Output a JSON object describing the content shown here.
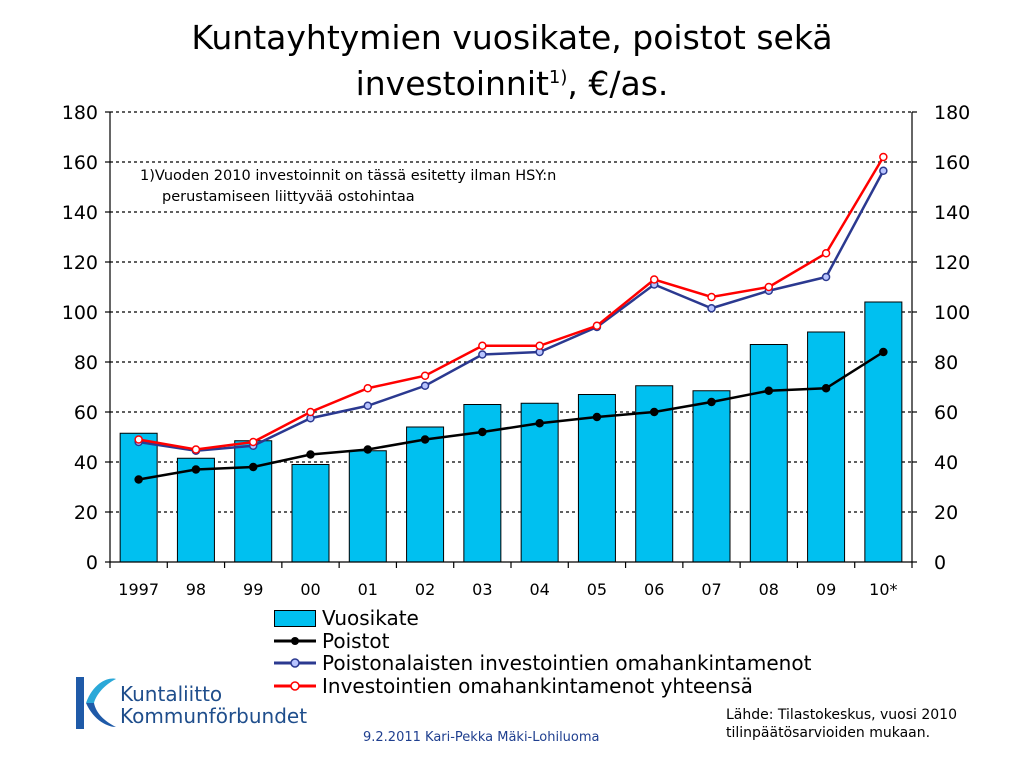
{
  "title": {
    "main": "Kuntayhtymien vuosikate, poistot sekä",
    "line2": "investoinnit",
    "sup": "1)",
    "tail": ", €/as."
  },
  "note": {
    "line1": "1)Vuoden 2010 investoinnit on tässä esitetty ilman HSY:n",
    "line2": "perustamiseen liittyvää ostohintaa"
  },
  "source": {
    "line1": "Lähde: Tilastokeskus, vuosi 2010",
    "line2": "tilinpäätösarvioiden mukaan."
  },
  "footer": "9.2.2011 Kari-Pekka Mäki-Lohiluoma",
  "logo": {
    "line1": "Kuntaliitto",
    "line2": "Kommunförbundet"
  },
  "chart_data": {
    "type": "bar",
    "categories": [
      "1997",
      "98",
      "99",
      "00",
      "01",
      "02",
      "03",
      "04",
      "05",
      "06",
      "07",
      "08",
      "09",
      "10*"
    ],
    "ylim": [
      0,
      180
    ],
    "yticks": [
      0,
      20,
      40,
      60,
      80,
      100,
      120,
      140,
      160,
      180
    ],
    "grid": true,
    "legend_position": "bottom",
    "series": [
      {
        "name": "Vuosikate",
        "kind": "bar",
        "color": "#00c0f0",
        "values": [
          51.5,
          41.5,
          48.5,
          39,
          44.5,
          54,
          63,
          63.5,
          67,
          70.5,
          68.5,
          87,
          92,
          104
        ]
      },
      {
        "name": "Poistot",
        "kind": "line",
        "color": "#000000",
        "values": [
          33,
          37,
          38,
          43,
          45,
          49,
          52,
          55.5,
          58,
          60,
          64,
          68.5,
          69.5,
          84
        ]
      },
      {
        "name": "Poistonalaisten investointien omahankintamenot",
        "kind": "line",
        "color": "#2b3990",
        "values": [
          48,
          44.5,
          46.5,
          57.5,
          62.5,
          70.5,
          83,
          84,
          94,
          111,
          101.5,
          108.5,
          114,
          156.5
        ]
      },
      {
        "name": "Investointien omahankintamenot yhteensä",
        "kind": "line",
        "color": "#ff0000",
        "values": [
          49,
          45,
          48,
          60,
          69.5,
          74.5,
          86.5,
          86.5,
          94.5,
          113,
          106,
          110,
          123.5,
          162
        ]
      }
    ]
  }
}
